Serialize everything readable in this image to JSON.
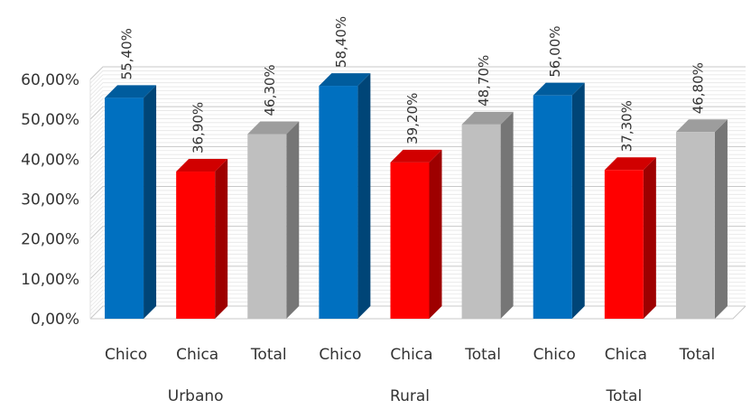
{
  "chart_data": {
    "type": "bar",
    "style": "3d-clustered-column",
    "groups": [
      "Urbano",
      "Rural",
      "Total"
    ],
    "categories": [
      "Chico",
      "Chica",
      "Total"
    ],
    "values": [
      [
        55.4,
        36.9,
        46.3
      ],
      [
        58.4,
        39.2,
        48.7
      ],
      [
        56.0,
        37.3,
        46.8
      ]
    ],
    "data_labels": [
      [
        "55,40%",
        "36,90%",
        "46,30%"
      ],
      [
        "58,40%",
        "39,20%",
        "48,70%"
      ],
      [
        "56,00%",
        "37,30%",
        "46,80%"
      ]
    ],
    "yticks": [
      0,
      10,
      20,
      30,
      40,
      50,
      60
    ],
    "ytick_labels": [
      "0,00%",
      "10,00%",
      "20,00%",
      "30,00%",
      "40,00%",
      "50,00%",
      "60,00%"
    ],
    "ylim": [
      0,
      60
    ],
    "grid": true,
    "legend": "none",
    "colors": {
      "Chico": "#0070C0",
      "Chica": "#FF0000",
      "Total": "#BFBFBF"
    }
  }
}
